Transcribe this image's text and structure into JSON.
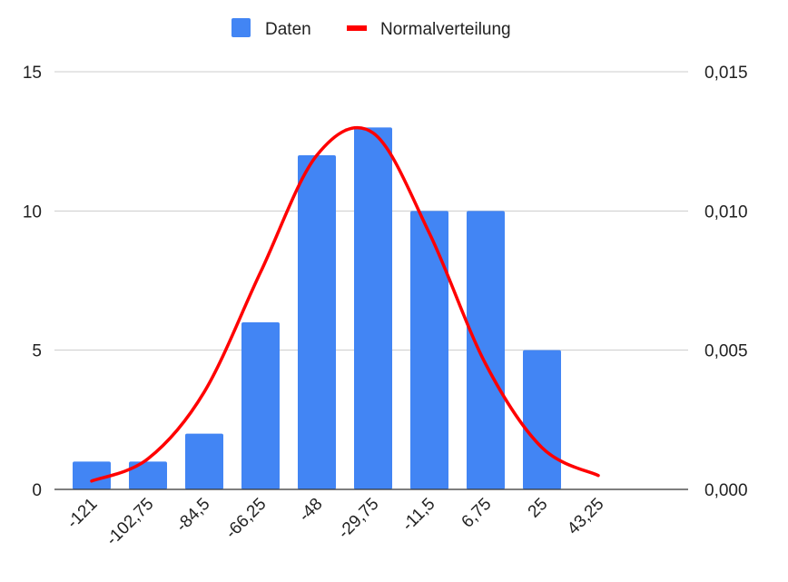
{
  "chart_data": {
    "type": "bar",
    "categories": [
      "-121",
      "-102,75",
      "-84,5",
      "-66,25",
      "-48",
      "-29,75",
      "-11,5",
      "6,75",
      "25",
      "43,25"
    ],
    "series": [
      {
        "name": "Daten",
        "type": "bar",
        "axis": "left",
        "color": "#4285F4",
        "values": [
          1,
          1,
          2,
          6,
          12,
          13,
          10,
          10,
          5,
          null
        ]
      },
      {
        "name": "Normalverteilung",
        "type": "line",
        "axis": "right",
        "color": "#FF0000",
        "values": [
          0.0003,
          0.0011,
          0.0035,
          0.0078,
          0.012,
          0.0128,
          0.0092,
          0.0045,
          0.0015,
          0.0005
        ]
      }
    ],
    "y_left": {
      "ylim": [
        0,
        15
      ],
      "ticks": [
        "0",
        "5",
        "10",
        "15"
      ]
    },
    "y_right": {
      "ylim": [
        0,
        0.015
      ],
      "ticks": [
        "0,000",
        "0,005",
        "0,010",
        "0,015"
      ]
    },
    "grid": true,
    "legend": "top-center",
    "title": "",
    "xlabel": "",
    "ylabel": ""
  }
}
